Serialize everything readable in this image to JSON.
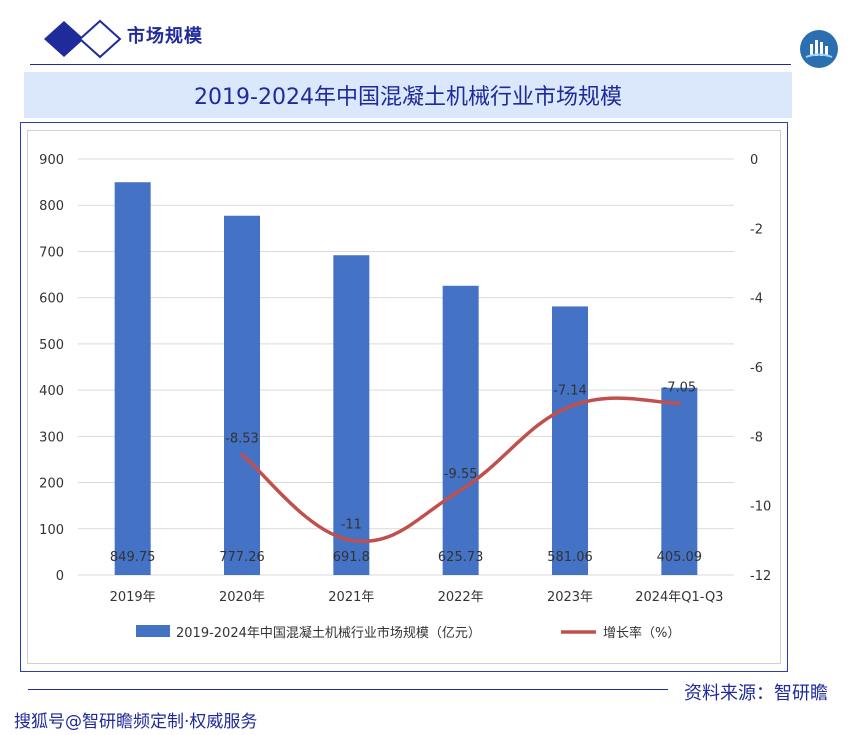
{
  "header": {
    "section_label": "市场规模"
  },
  "title": "2019-2024年中国混凝土机械行业市场规模",
  "footer": {
    "source": "资料来源：智研瞻",
    "tagline": "搜狐号@智研瞻频定制·权威服务"
  },
  "colors": {
    "accent": "#1f2a9b",
    "bar": "#4472c4",
    "line": "#c0504d",
    "title_bg": "#dbe8fb"
  },
  "chart_data": {
    "type": "bar",
    "categories": [
      "2019年",
      "2020年",
      "2021年",
      "2022年",
      "2023年",
      "2024年Q1-Q3"
    ],
    "series": [
      {
        "name": "2019-2024年中国混凝土机械行业市场规模（亿元）",
        "type": "bar",
        "axis": "left",
        "values": [
          849.75,
          777.26,
          691.8,
          625.73,
          581.06,
          405.09
        ],
        "labels": [
          "849.75",
          "777.26",
          "691.8",
          "625.73",
          "581.06",
          "405.09"
        ]
      },
      {
        "name": "增长率（%）",
        "type": "line",
        "axis": "right",
        "smooth": true,
        "values": [
          null,
          -8.53,
          -11,
          -9.55,
          -7.14,
          -7.05
        ],
        "labels": [
          "",
          "-8.53",
          "-11",
          "-9.55",
          "-7.14",
          "-7.05"
        ]
      }
    ],
    "ylim": [
      0,
      900
    ],
    "yticks": [
      "0",
      "100",
      "200",
      "300",
      "400",
      "500",
      "600",
      "700",
      "800",
      "900"
    ],
    "y2lim": [
      -12,
      0
    ],
    "y2ticks": [
      "0",
      "-2",
      "-4",
      "-6",
      "-8",
      "-10",
      "-12"
    ],
    "grid": true,
    "legend": "bottom"
  }
}
